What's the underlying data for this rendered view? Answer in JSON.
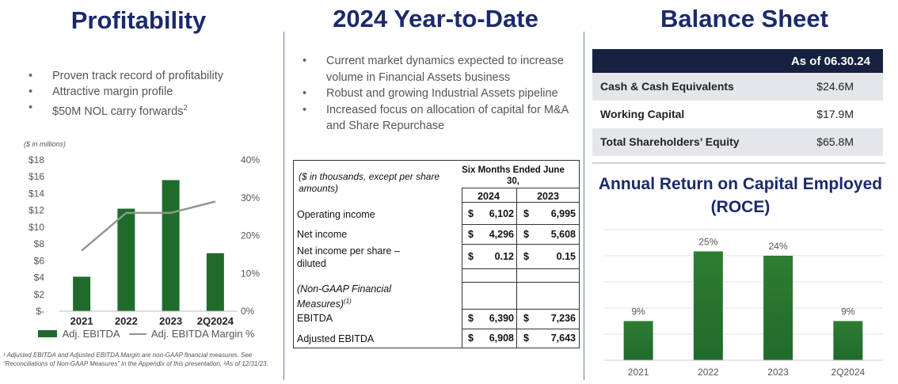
{
  "profitability": {
    "title": "Profitability",
    "bullets": [
      "Proven track record of profitability",
      "Attractive margin profile",
      "$50M NOL carry forwards"
    ],
    "nol_superscript": "2",
    "footnote": "¹ Adjusted EBITDA and Adjusted EBITDA Margin are non-GAAP financial measures. See “Reconciliations of Non-GAAP Measures” in the Appendix of this presentation. ²As of 12/31/23."
  },
  "ytd": {
    "title": "2024 Year-to-Date",
    "bullets": [
      "Current market dynamics expected to increase volume in Financial Assets business",
      "Robust and growing Industrial Assets pipeline",
      "Increased focus on allocation of capital for M&A and Share Repurchase"
    ],
    "table": {
      "header_left": "($ in thousands, except per share amounts)",
      "period_header": "Six Months Ended June 30,",
      "col_2024": "2024",
      "col_2023": "2023",
      "rows": [
        {
          "label": "Operating income",
          "v2024": "6,102",
          "v2023": "6,995",
          "currency": "$"
        },
        {
          "label": "Net income",
          "v2024": "4,296",
          "v2023": "5,608",
          "currency": "$"
        },
        {
          "label": "Net income per share – diluted",
          "v2024": "0.12",
          "v2023": "0.15",
          "currency": "$"
        },
        {
          "label": "",
          "v2024": "",
          "v2023": "",
          "currency": ""
        },
        {
          "label": "(Non-GAAP Financial Measures)",
          "v2024": "",
          "v2023": "",
          "currency": "",
          "note": "(1)"
        },
        {
          "label": "EBITDA",
          "v2024": "6,390",
          "v2023": "7,236",
          "currency": "$"
        },
        {
          "label": "Adjusted EBITDA",
          "v2024": "6,908",
          "v2023": "7,643",
          "currency": "$"
        }
      ]
    }
  },
  "balance": {
    "title": "Balance Sheet",
    "as_of": "As of 06.30.24",
    "rows": [
      {
        "label": "Cash & Cash Equivalents",
        "value": "$24.6M"
      },
      {
        "label": "Working Capital",
        "value": "$17.9M"
      },
      {
        "label": "Total Shareholders’ Equity",
        "value": "$65.8M"
      }
    ]
  },
  "roce": {
    "title_line1": "Annual Return on Capital Employed",
    "title_line2": "(ROCE)"
  },
  "colors": {
    "navy": "#1b2a6b",
    "bar_green": "#1f6b2c",
    "line_gray": "#8c9a8c",
    "table_header_navy": "#16213f"
  },
  "chart_data": [
    {
      "type": "bar",
      "unit_note": "($ in millions)",
      "categories": [
        "2021",
        "2022",
        "2023",
        "2Q2024"
      ],
      "series": [
        {
          "name": "Adj. EBITDA",
          "type": "bar",
          "axis": "left",
          "values": [
            4.1,
            12.2,
            15.6,
            6.9
          ]
        },
        {
          "name": "Adj. EBITDA Margin %",
          "type": "line",
          "axis": "right",
          "values": [
            16,
            26,
            26,
            29
          ]
        }
      ],
      "left_ticks": [
        "$-",
        "$2",
        "$4",
        "$6",
        "$8",
        "$10",
        "$12",
        "$14",
        "$16",
        "$18"
      ],
      "ylim_left": [
        0,
        18
      ],
      "right_ticks": [
        "0%",
        "10%",
        "20%",
        "30%",
        "40%"
      ],
      "ylim_right": [
        0,
        40
      ],
      "legend": "bottom",
      "grid": false
    },
    {
      "type": "bar",
      "title": "Annual Return on Capital Employed (ROCE)",
      "categories": [
        "2021",
        "2022",
        "2023",
        "2Q2024"
      ],
      "values": [
        9,
        25,
        24,
        9
      ],
      "data_labels": [
        "9%",
        "25%",
        "24%",
        "9%"
      ],
      "ylim": [
        0,
        30
      ],
      "grid": true
    }
  ]
}
